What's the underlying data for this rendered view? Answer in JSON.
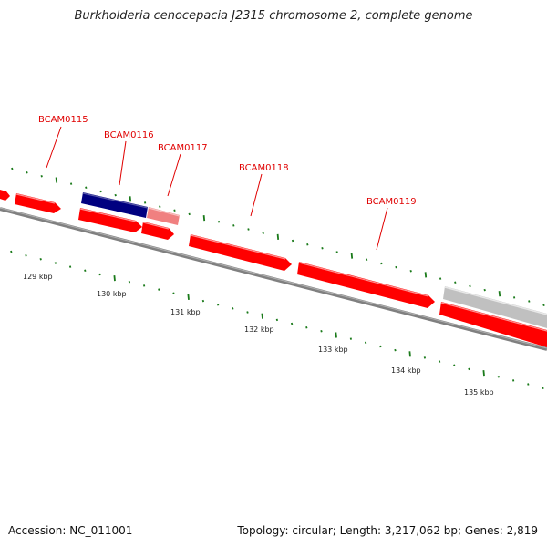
{
  "title": "Burkholderia cenocepacia J2315 chromosome 2, complete genome",
  "footer": {
    "accession": "Accession: NC_011001",
    "summary": "Topology: circular; Length: 3,217,062 bp; Genes: 2,819"
  },
  "colors": {
    "gene_red": "#ff0000",
    "gene_pink": "#f08080",
    "gene_navy": "#000080",
    "gene_gray": "#c0c0c0",
    "backbone": "#808080",
    "label_red": "#e00000",
    "tick_green": "#1a7a1a"
  },
  "gene_labels": [
    {
      "text": "BCAM0115"
    },
    {
      "text": "BCAM0116"
    },
    {
      "text": "BCAM0117"
    },
    {
      "text": "BCAM0118"
    },
    {
      "text": "BCAM0119"
    }
  ],
  "scale_labels": [
    "129 kbp",
    "130 kbp",
    "131 kbp",
    "132 kbp",
    "133 kbp",
    "134 kbp",
    "135 kbp"
  ]
}
